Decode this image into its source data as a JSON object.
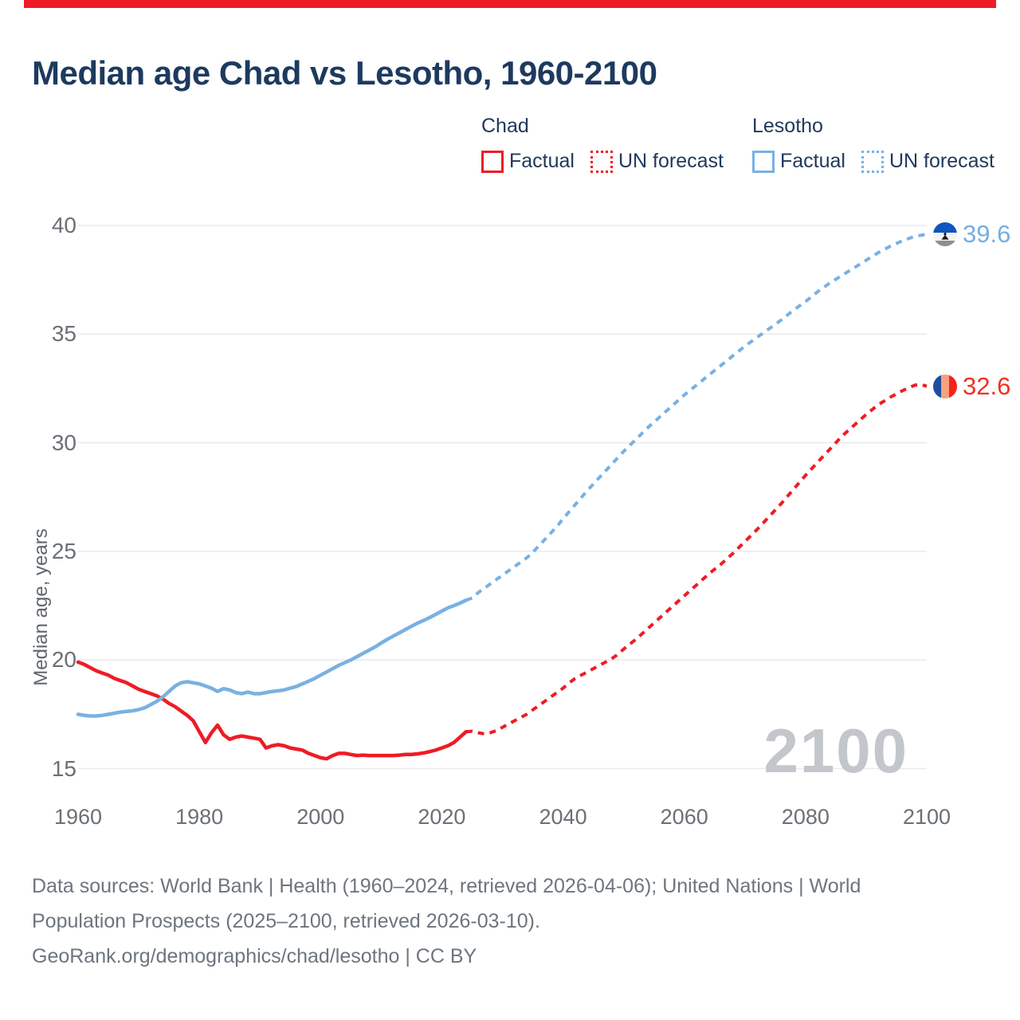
{
  "accent_bar_color": "#ee1c25",
  "header": {
    "title": "Median age Chad vs Lesotho, 1960-2100"
  },
  "legend": {
    "groups": [
      {
        "country": "Chad",
        "color": "#ee1c25",
        "items": [
          {
            "label": "Factual",
            "style": "solid"
          },
          {
            "label": "UN forecast",
            "style": "dotted"
          }
        ]
      },
      {
        "country": "Lesotho",
        "color": "#79b1e2",
        "items": [
          {
            "label": "Factual",
            "style": "solid"
          },
          {
            "label": "UN forecast",
            "style": "dotted"
          }
        ]
      }
    ]
  },
  "end_labels": [
    {
      "series": "Lesotho",
      "value": "39.6",
      "color": "#74aee2",
      "flag": "lesotho-flag"
    },
    {
      "series": "Chad",
      "value": "32.6",
      "color": "#f0301f",
      "flag": "chad-flag"
    }
  ],
  "watermark": "2100",
  "footer": {
    "lines": [
      "Data sources: World Bank | Health (1960–2024, retrieved 2026-04-06); United Nations | World",
      "Population Prospects (2025–2100, retrieved 2026-03-10).",
      "GeoRank.org/demographics/chad/lesotho | CC BY"
    ]
  },
  "chart_data": {
    "type": "line",
    "title": "Median age Chad vs Lesotho, 1960-2100",
    "xlabel": "",
    "ylabel": "Median age, years",
    "x_ticks": [
      1960,
      1980,
      2000,
      2020,
      2040,
      2060,
      2080,
      2100
    ],
    "y_ticks": [
      15,
      20,
      25,
      30,
      35,
      40
    ],
    "xlim": [
      1960,
      2100
    ],
    "ylim": [
      15,
      40
    ],
    "grid": true,
    "legend_position": "top-right",
    "series": [
      {
        "name": "Chad",
        "segment": "factual",
        "color": "#ee1c25",
        "line_style": "solid",
        "points": [
          [
            1960,
            19.9
          ],
          [
            1961,
            19.8
          ],
          [
            1962,
            19.65
          ],
          [
            1963,
            19.5
          ],
          [
            1964,
            19.4
          ],
          [
            1965,
            19.3
          ],
          [
            1966,
            19.15
          ],
          [
            1967,
            19.05
          ],
          [
            1968,
            18.95
          ],
          [
            1969,
            18.8
          ],
          [
            1970,
            18.65
          ],
          [
            1971,
            18.55
          ],
          [
            1972,
            18.45
          ],
          [
            1973,
            18.35
          ],
          [
            1974,
            18.2
          ],
          [
            1975,
            18.0
          ],
          [
            1976,
            17.85
          ],
          [
            1977,
            17.65
          ],
          [
            1978,
            17.45
          ],
          [
            1979,
            17.2
          ],
          [
            1980,
            16.7
          ],
          [
            1981,
            16.2
          ],
          [
            1982,
            16.65
          ],
          [
            1983,
            17.0
          ],
          [
            1984,
            16.55
          ],
          [
            1985,
            16.35
          ],
          [
            1986,
            16.45
          ],
          [
            1987,
            16.5
          ],
          [
            1988,
            16.45
          ],
          [
            1989,
            16.4
          ],
          [
            1990,
            16.35
          ],
          [
            1991,
            15.95
          ],
          [
            1992,
            16.05
          ],
          [
            1993,
            16.1
          ],
          [
            1994,
            16.05
          ],
          [
            1995,
            15.95
          ],
          [
            1996,
            15.9
          ],
          [
            1997,
            15.85
          ],
          [
            1998,
            15.7
          ],
          [
            1999,
            15.6
          ],
          [
            2000,
            15.5
          ],
          [
            2001,
            15.45
          ],
          [
            2002,
            15.6
          ],
          [
            2003,
            15.7
          ],
          [
            2004,
            15.7
          ],
          [
            2005,
            15.65
          ],
          [
            2006,
            15.6
          ],
          [
            2007,
            15.62
          ],
          [
            2008,
            15.6
          ],
          [
            2009,
            15.6
          ],
          [
            2010,
            15.6
          ],
          [
            2011,
            15.6
          ],
          [
            2012,
            15.6
          ],
          [
            2013,
            15.62
          ],
          [
            2014,
            15.65
          ],
          [
            2015,
            15.65
          ],
          [
            2016,
            15.68
          ],
          [
            2017,
            15.72
          ],
          [
            2018,
            15.78
          ],
          [
            2019,
            15.85
          ],
          [
            2020,
            15.95
          ],
          [
            2021,
            16.05
          ],
          [
            2022,
            16.2
          ],
          [
            2023,
            16.45
          ],
          [
            2024,
            16.7
          ]
        ]
      },
      {
        "name": "Chad",
        "segment": "UN forecast",
        "color": "#ee1c25",
        "line_style": "dashed",
        "points": [
          [
            2024,
            16.7
          ],
          [
            2025,
            16.72
          ],
          [
            2026,
            16.65
          ],
          [
            2027,
            16.6
          ],
          [
            2028,
            16.65
          ],
          [
            2029,
            16.75
          ],
          [
            2030,
            16.9
          ],
          [
            2031,
            17.05
          ],
          [
            2032,
            17.2
          ],
          [
            2033,
            17.35
          ],
          [
            2034,
            17.5
          ],
          [
            2035,
            17.7
          ],
          [
            2036,
            17.9
          ],
          [
            2037,
            18.1
          ],
          [
            2038,
            18.3
          ],
          [
            2039,
            18.5
          ],
          [
            2040,
            18.7
          ],
          [
            2041,
            18.95
          ],
          [
            2042,
            19.15
          ],
          [
            2043,
            19.3
          ],
          [
            2044,
            19.45
          ],
          [
            2045,
            19.6
          ],
          [
            2046,
            19.75
          ],
          [
            2047,
            19.9
          ],
          [
            2048,
            20.05
          ],
          [
            2049,
            20.25
          ],
          [
            2050,
            20.5
          ],
          [
            2052,
            20.95
          ],
          [
            2054,
            21.45
          ],
          [
            2056,
            21.95
          ],
          [
            2058,
            22.45
          ],
          [
            2060,
            22.95
          ],
          [
            2062,
            23.45
          ],
          [
            2064,
            23.95
          ],
          [
            2066,
            24.4
          ],
          [
            2068,
            24.9
          ],
          [
            2070,
            25.45
          ],
          [
            2072,
            26.0
          ],
          [
            2074,
            26.6
          ],
          [
            2076,
            27.2
          ],
          [
            2078,
            27.85
          ],
          [
            2080,
            28.5
          ],
          [
            2082,
            29.1
          ],
          [
            2084,
            29.7
          ],
          [
            2086,
            30.3
          ],
          [
            2088,
            30.8
          ],
          [
            2090,
            31.3
          ],
          [
            2092,
            31.75
          ],
          [
            2094,
            32.1
          ],
          [
            2096,
            32.4
          ],
          [
            2098,
            32.65
          ],
          [
            2099,
            32.68
          ],
          [
            2100,
            32.6
          ]
        ]
      },
      {
        "name": "Lesotho",
        "segment": "factual",
        "color": "#79b1e2",
        "line_style": "solid",
        "points": [
          [
            1960,
            17.5
          ],
          [
            1961,
            17.45
          ],
          [
            1962,
            17.42
          ],
          [
            1963,
            17.42
          ],
          [
            1964,
            17.45
          ],
          [
            1965,
            17.5
          ],
          [
            1966,
            17.55
          ],
          [
            1967,
            17.6
          ],
          [
            1968,
            17.63
          ],
          [
            1969,
            17.66
          ],
          [
            1970,
            17.72
          ],
          [
            1971,
            17.8
          ],
          [
            1972,
            17.95
          ],
          [
            1973,
            18.1
          ],
          [
            1974,
            18.3
          ],
          [
            1975,
            18.55
          ],
          [
            1976,
            18.8
          ],
          [
            1977,
            18.95
          ],
          [
            1978,
            19.0
          ],
          [
            1979,
            18.95
          ],
          [
            1980,
            18.9
          ],
          [
            1981,
            18.8
          ],
          [
            1982,
            18.7
          ],
          [
            1983,
            18.55
          ],
          [
            1984,
            18.68
          ],
          [
            1985,
            18.62
          ],
          [
            1986,
            18.5
          ],
          [
            1987,
            18.45
          ],
          [
            1988,
            18.52
          ],
          [
            1989,
            18.45
          ],
          [
            1990,
            18.45
          ],
          [
            1991,
            18.5
          ],
          [
            1992,
            18.55
          ],
          [
            1993,
            18.58
          ],
          [
            1994,
            18.62
          ],
          [
            1995,
            18.7
          ],
          [
            1996,
            18.78
          ],
          [
            1997,
            18.9
          ],
          [
            1998,
            19.02
          ],
          [
            1999,
            19.15
          ],
          [
            2000,
            19.3
          ],
          [
            2001,
            19.45
          ],
          [
            2002,
            19.6
          ],
          [
            2003,
            19.75
          ],
          [
            2004,
            19.88
          ],
          [
            2005,
            20.0
          ],
          [
            2006,
            20.15
          ],
          [
            2007,
            20.3
          ],
          [
            2008,
            20.45
          ],
          [
            2009,
            20.6
          ],
          [
            2010,
            20.78
          ],
          [
            2011,
            20.95
          ],
          [
            2012,
            21.1
          ],
          [
            2013,
            21.25
          ],
          [
            2014,
            21.4
          ],
          [
            2015,
            21.55
          ],
          [
            2016,
            21.7
          ],
          [
            2017,
            21.82
          ],
          [
            2018,
            21.95
          ],
          [
            2019,
            22.1
          ],
          [
            2020,
            22.25
          ],
          [
            2021,
            22.4
          ],
          [
            2022,
            22.5
          ],
          [
            2023,
            22.62
          ],
          [
            2024,
            22.75
          ]
        ]
      },
      {
        "name": "Lesotho",
        "segment": "UN forecast",
        "color": "#79b1e2",
        "line_style": "dashed",
        "points": [
          [
            2024,
            22.75
          ],
          [
            2025,
            22.85
          ],
          [
            2026,
            23.1
          ],
          [
            2027,
            23.3
          ],
          [
            2028,
            23.5
          ],
          [
            2029,
            23.7
          ],
          [
            2030,
            23.9
          ],
          [
            2031,
            24.1
          ],
          [
            2032,
            24.3
          ],
          [
            2033,
            24.5
          ],
          [
            2034,
            24.7
          ],
          [
            2035,
            24.95
          ],
          [
            2036,
            25.25
          ],
          [
            2037,
            25.55
          ],
          [
            2038,
            25.85
          ],
          [
            2039,
            26.15
          ],
          [
            2040,
            26.5
          ],
          [
            2042,
            27.15
          ],
          [
            2044,
            27.8
          ],
          [
            2046,
            28.4
          ],
          [
            2048,
            29.0
          ],
          [
            2050,
            29.6
          ],
          [
            2052,
            30.15
          ],
          [
            2054,
            30.7
          ],
          [
            2056,
            31.2
          ],
          [
            2058,
            31.7
          ],
          [
            2060,
            32.2
          ],
          [
            2062,
            32.65
          ],
          [
            2064,
            33.1
          ],
          [
            2066,
            33.55
          ],
          [
            2068,
            34.0
          ],
          [
            2070,
            34.45
          ],
          [
            2072,
            34.85
          ],
          [
            2074,
            35.25
          ],
          [
            2076,
            35.65
          ],
          [
            2078,
            36.1
          ],
          [
            2080,
            36.5
          ],
          [
            2082,
            36.95
          ],
          [
            2084,
            37.35
          ],
          [
            2086,
            37.7
          ],
          [
            2088,
            38.05
          ],
          [
            2090,
            38.4
          ],
          [
            2092,
            38.75
          ],
          [
            2094,
            39.05
          ],
          [
            2096,
            39.3
          ],
          [
            2098,
            39.5
          ],
          [
            2099,
            39.55
          ],
          [
            2100,
            39.6
          ]
        ]
      }
    ],
    "end_values": {
      "Lesotho": 39.6,
      "Chad": 32.6
    }
  }
}
